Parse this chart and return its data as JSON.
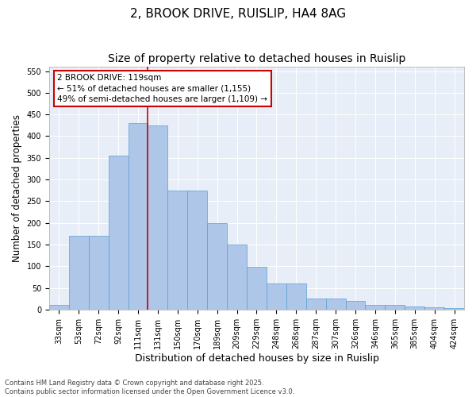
{
  "title1": "2, BROOK DRIVE, RUISLIP, HA4 8AG",
  "title2": "Size of property relative to detached houses in Ruislip",
  "xlabel": "Distribution of detached houses by size in Ruislip",
  "ylabel": "Number of detached properties",
  "categories": [
    "33sqm",
    "53sqm",
    "72sqm",
    "92sqm",
    "111sqm",
    "131sqm",
    "150sqm",
    "170sqm",
    "189sqm",
    "209sqm",
    "229sqm",
    "248sqm",
    "268sqm",
    "287sqm",
    "307sqm",
    "326sqm",
    "346sqm",
    "365sqm",
    "385sqm",
    "404sqm",
    "424sqm"
  ],
  "values": [
    10,
    170,
    170,
    355,
    430,
    425,
    275,
    275,
    200,
    150,
    98,
    60,
    60,
    25,
    25,
    20,
    10,
    10,
    7,
    5,
    3
  ],
  "bar_color": "#aec6e8",
  "bar_edge_color": "#5a9fd4",
  "vline_x": 5,
  "vline_color": "#cc0000",
  "annotation_line1": "2 BROOK DRIVE: 119sqm",
  "annotation_line2": "← 51% of detached houses are smaller (1,155)",
  "annotation_line3": "49% of semi-detached houses are larger (1,109) →",
  "annotation_box_color": "#cc0000",
  "ylim": [
    0,
    560
  ],
  "yticks": [
    0,
    50,
    100,
    150,
    200,
    250,
    300,
    350,
    400,
    450,
    500,
    550
  ],
  "bg_color": "#e8eef7",
  "footer_line1": "Contains HM Land Registry data © Crown copyright and database right 2025.",
  "footer_line2": "Contains public sector information licensed under the Open Government Licence v3.0.",
  "title_fontsize": 11,
  "subtitle_fontsize": 10,
  "tick_fontsize": 7,
  "ylabel_fontsize": 8.5,
  "xlabel_fontsize": 9,
  "annotation_fontsize": 7.5,
  "footer_fontsize": 6
}
